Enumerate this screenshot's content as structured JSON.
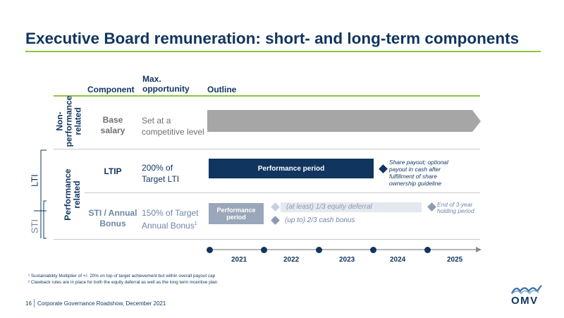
{
  "title": "Executive Board remuneration: short- and long-term components",
  "headers": {
    "component": "Component",
    "max_line1": "Max.",
    "max_line2": "opportunity",
    "outline": "Outline"
  },
  "groups": {
    "non_performance": {
      "l1": "Non-",
      "l2": "performance",
      "l3": "related"
    },
    "performance": {
      "l1": "Performance",
      "l2": "related"
    },
    "lti_bracket": "LTI",
    "sti_bracket": "STI"
  },
  "rows": {
    "base": {
      "c1": "Base",
      "c2": "salary",
      "o1": "Set at a",
      "o2": "competitive level"
    },
    "ltip": {
      "c1": "LTIP",
      "o1": "200% of",
      "o2": "Target LTI"
    },
    "sti": {
      "c1": "STI / Annual",
      "c2": "Bonus",
      "o1": "150% of Target",
      "o2": "Annual Bonus",
      "o2_sup": "1"
    }
  },
  "bars": {
    "ltip_period": "Performance period",
    "sti_period_l1": "Performance",
    "sti_period_l2": "period",
    "equity_deferral": "(at least) 1/3 equity deferral",
    "cash_bonus": "(up to) 2/3 cash bonus"
  },
  "notes": {
    "share_payout": [
      "Share payout; optional",
      "payout in cash after",
      "fulfillment of share",
      "ownership guideline"
    ],
    "holding_end": [
      "End of 3-year",
      "holding period"
    ]
  },
  "timeline": {
    "years": [
      "2021",
      "2022",
      "2023",
      "2024",
      "2025"
    ]
  },
  "footnotes": {
    "f1": "¹ Sustainability Multiplier of +/- 20% on top of target achievement but within overall payout cap",
    "f2": "² Clawback rules are in place for both the equity deferral as well as the long term incentive plan"
  },
  "footer": {
    "page": "16",
    "text": "Corporate Governance Roadshow, December 2021"
  },
  "logo": {
    "text": "OMV"
  },
  "colors": {
    "navy": "#10355f",
    "green": "#8cc63f",
    "grey_bar": "#a6a6a6",
    "light_bar": "#e4e8ef",
    "diamond_light": "#c9d1dd",
    "diamond_mid": "#8b9bb4",
    "text_grey": "#707070",
    "sti_box": "#9aa7ba"
  }
}
